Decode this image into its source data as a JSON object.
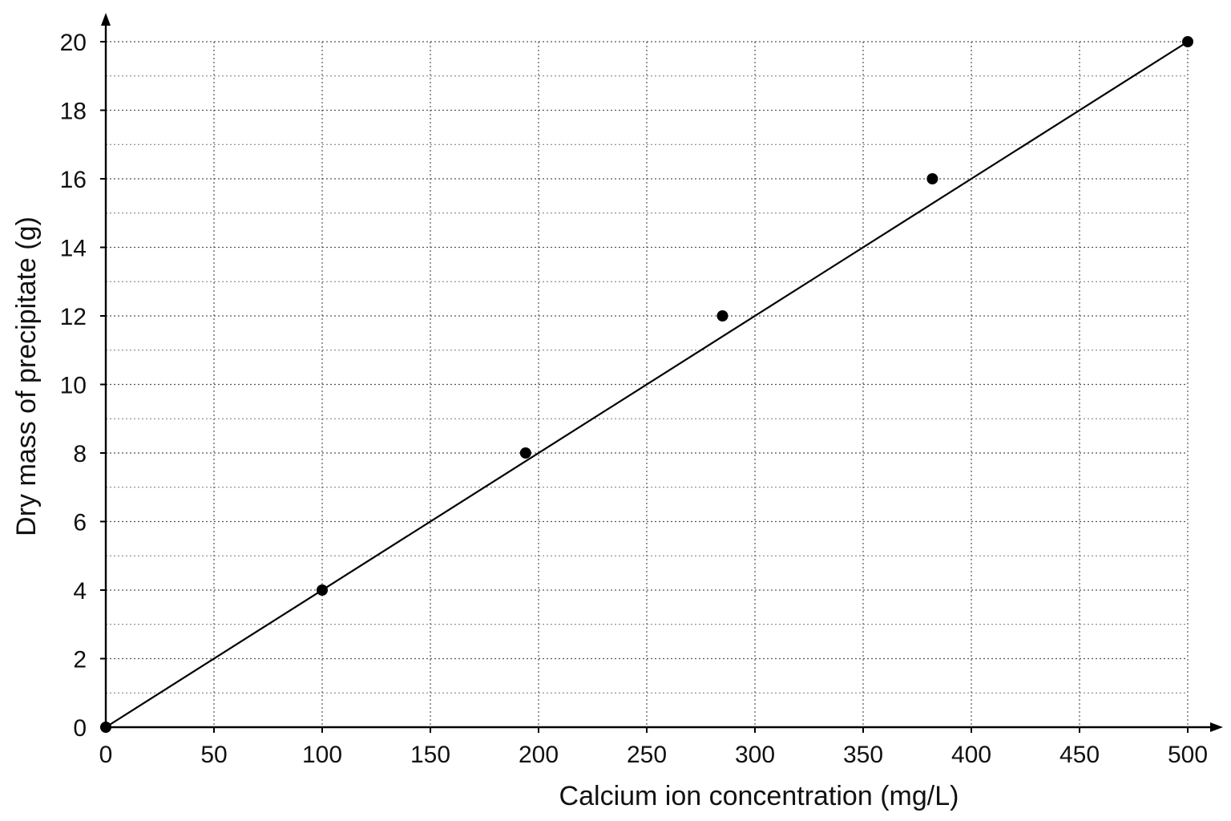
{
  "chart_data": {
    "type": "scatter",
    "title": "",
    "xlabel": "Calcium ion concentration (mg/L)",
    "ylabel": "Dry mass of precipitate (g)",
    "xlim": [
      0,
      500
    ],
    "ylim": [
      0,
      20
    ],
    "x_ticks": [
      "0",
      "50",
      "100",
      "150",
      "200",
      "250",
      "300",
      "350",
      "400",
      "450",
      "500"
    ],
    "y_ticks": [
      "0",
      "2",
      "4",
      "6",
      "8",
      "10",
      "12",
      "14",
      "16",
      "18",
      "20"
    ],
    "grid": true,
    "points": [
      {
        "x": 0,
        "y": 0
      },
      {
        "x": 100,
        "y": 4
      },
      {
        "x": 194,
        "y": 8
      },
      {
        "x": 285,
        "y": 12
      },
      {
        "x": 382,
        "y": 16
      },
      {
        "x": 500,
        "y": 20
      }
    ],
    "best_fit_line": {
      "x": [
        0,
        500
      ],
      "y": [
        0,
        20
      ]
    },
    "colors": {
      "marker": "#000000",
      "line": "#000000",
      "grid": "#666666"
    }
  }
}
